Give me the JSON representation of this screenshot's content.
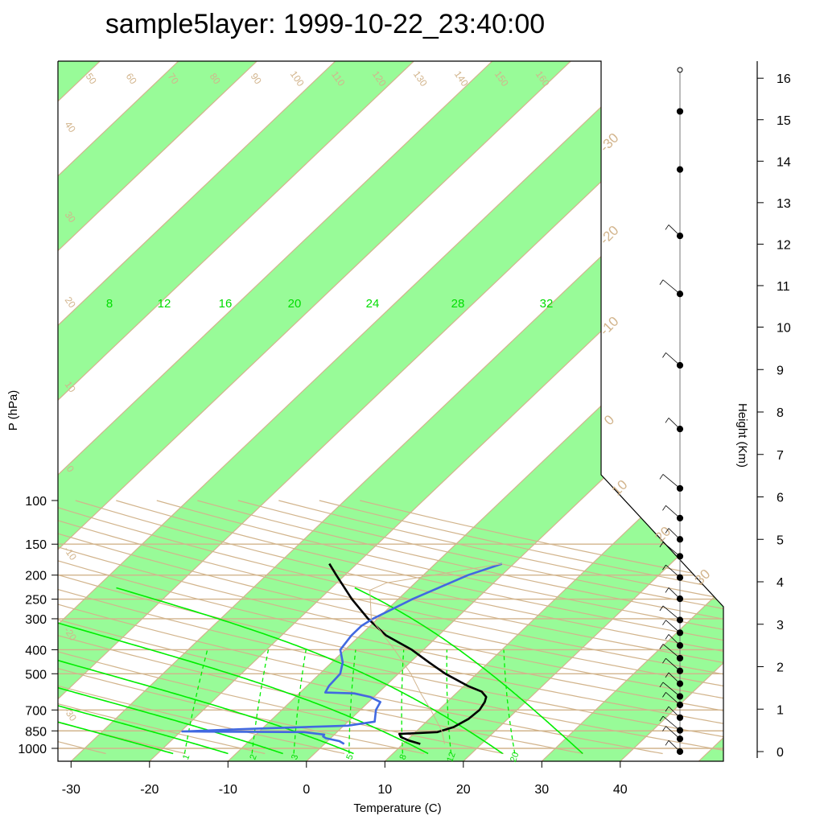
{
  "chart_data": {
    "type": "line",
    "title": "sample5layer: 1999-10-22_23:40:00",
    "xlabel": "Temperature (C)",
    "ylabel": "P (hPa)",
    "y2label": "Height (Km)",
    "xlim": [
      -34,
      51
    ],
    "ylim": [
      1050,
      100
    ],
    "x_ticks": [
      "-30",
      "-20",
      "-10",
      "0",
      "10",
      "20",
      "30",
      "40"
    ],
    "y_ticks": [
      "100",
      "150",
      "200",
      "250",
      "300",
      "400",
      "500",
      "700",
      "850",
      "1000"
    ],
    "y2_ticks": [
      "0",
      "1",
      "2",
      "3",
      "4",
      "5",
      "6",
      "7",
      "8",
      "9",
      "10",
      "11",
      "12",
      "13",
      "14",
      "15",
      "16"
    ],
    "dry_adiabat_labels": [
      "50",
      "60",
      "70",
      "80",
      "90",
      "100",
      "110",
      "120",
      "130",
      "140",
      "150",
      "160",
      "40",
      "30",
      "20",
      "10",
      "0",
      "-10",
      "-20",
      "-30"
    ],
    "moist_adiabat_labels": [
      "8",
      "12",
      "16",
      "20",
      "24",
      "28",
      "32"
    ],
    "mixing_ratio_labels": [
      "1",
      "2",
      "3",
      "5",
      "8",
      "12",
      "20"
    ],
    "isotherm_labels": [
      "-30",
      "-20",
      "-10",
      "0",
      "10",
      "20",
      "30"
    ],
    "series": [
      {
        "color": "#000000",
        "points": [
          {
            "p": 960,
            "t": 12.2
          },
          {
            "p": 930,
            "t": 10.3
          },
          {
            "p": 900,
            "t": 8.8
          },
          {
            "p": 875,
            "t": 8.2
          },
          {
            "p": 860,
            "t": 12.8
          },
          {
            "p": 820,
            "t": 14.2
          },
          {
            "p": 760,
            "t": 15.0
          },
          {
            "p": 700,
            "t": 15.2
          },
          {
            "p": 650,
            "t": 14.8
          },
          {
            "p": 620,
            "t": 14.3
          },
          {
            "p": 590,
            "t": 13.0
          },
          {
            "p": 560,
            "t": 10.5
          },
          {
            "p": 500,
            "t": 6.0
          },
          {
            "p": 450,
            "t": 2.4
          },
          {
            "p": 400,
            "t": -1.5
          },
          {
            "p": 350,
            "t": -6.7
          },
          {
            "p": 300,
            "t": -11.2
          },
          {
            "p": 250,
            "t": -15.9
          },
          {
            "p": 200,
            "t": -21.1
          },
          {
            "p": 180,
            "t": -23.5
          }
        ]
      },
      {
        "color": "#4169e1",
        "points": [
          {
            "p": 960,
            "t": 2.5
          },
          {
            "p": 935,
            "t": 1.5
          },
          {
            "p": 910,
            "t": -0.6
          },
          {
            "p": 895,
            "t": -1.2
          },
          {
            "p": 880,
            "t": -1.3
          },
          {
            "p": 860,
            "t": -4.2
          },
          {
            "p": 855,
            "t": -19.8
          },
          {
            "p": 835,
            "t": -12.0
          },
          {
            "p": 810,
            "t": 0.5
          },
          {
            "p": 780,
            "t": 3.4
          },
          {
            "p": 700,
            "t": 2.0
          },
          {
            "p": 650,
            "t": 1.5
          },
          {
            "p": 620,
            "t": -0.5
          },
          {
            "p": 600,
            "t": -3.0
          },
          {
            "p": 595,
            "t": -6.8
          },
          {
            "p": 560,
            "t": -7.2
          },
          {
            "p": 500,
            "t": -7.4
          },
          {
            "p": 450,
            "t": -8.6
          },
          {
            "p": 400,
            "t": -10.6
          },
          {
            "p": 350,
            "t": -11.1
          },
          {
            "p": 320,
            "t": -11.1
          },
          {
            "p": 300,
            "t": -10.6
          },
          {
            "p": 250,
            "t": -8.2
          },
          {
            "p": 200,
            "t": -4.3
          },
          {
            "p": 180,
            "t": -1.5
          }
        ]
      },
      {
        "color": "#d2b48c",
        "points": [
          {
            "p": 960,
            "t": 15.3
          },
          {
            "p": 850,
            "t": 13.2
          },
          {
            "p": 700,
            "t": 9.0
          },
          {
            "p": 600,
            "t": 5.5
          },
          {
            "p": 500,
            "t": 1.6
          },
          {
            "p": 400,
            "t": -3.7
          },
          {
            "p": 300,
            "t": -10.8
          },
          {
            "p": 230,
            "t": -14.8
          },
          {
            "p": 215,
            "t": -13.7
          },
          {
            "p": 180,
            "t": -1.5
          }
        ]
      }
    ],
    "wind_barb_heights_km": [
      0,
      0.3,
      0.5,
      0.8,
      1.1,
      1.3,
      1.6,
      1.9,
      2.2,
      2.5,
      2.8,
      3.1,
      3.6,
      4.1,
      4.6,
      5.0,
      5.5,
      6.2,
      7.6,
      9.1,
      10.8,
      12.2,
      13.8,
      15.2,
      16.2
    ]
  }
}
